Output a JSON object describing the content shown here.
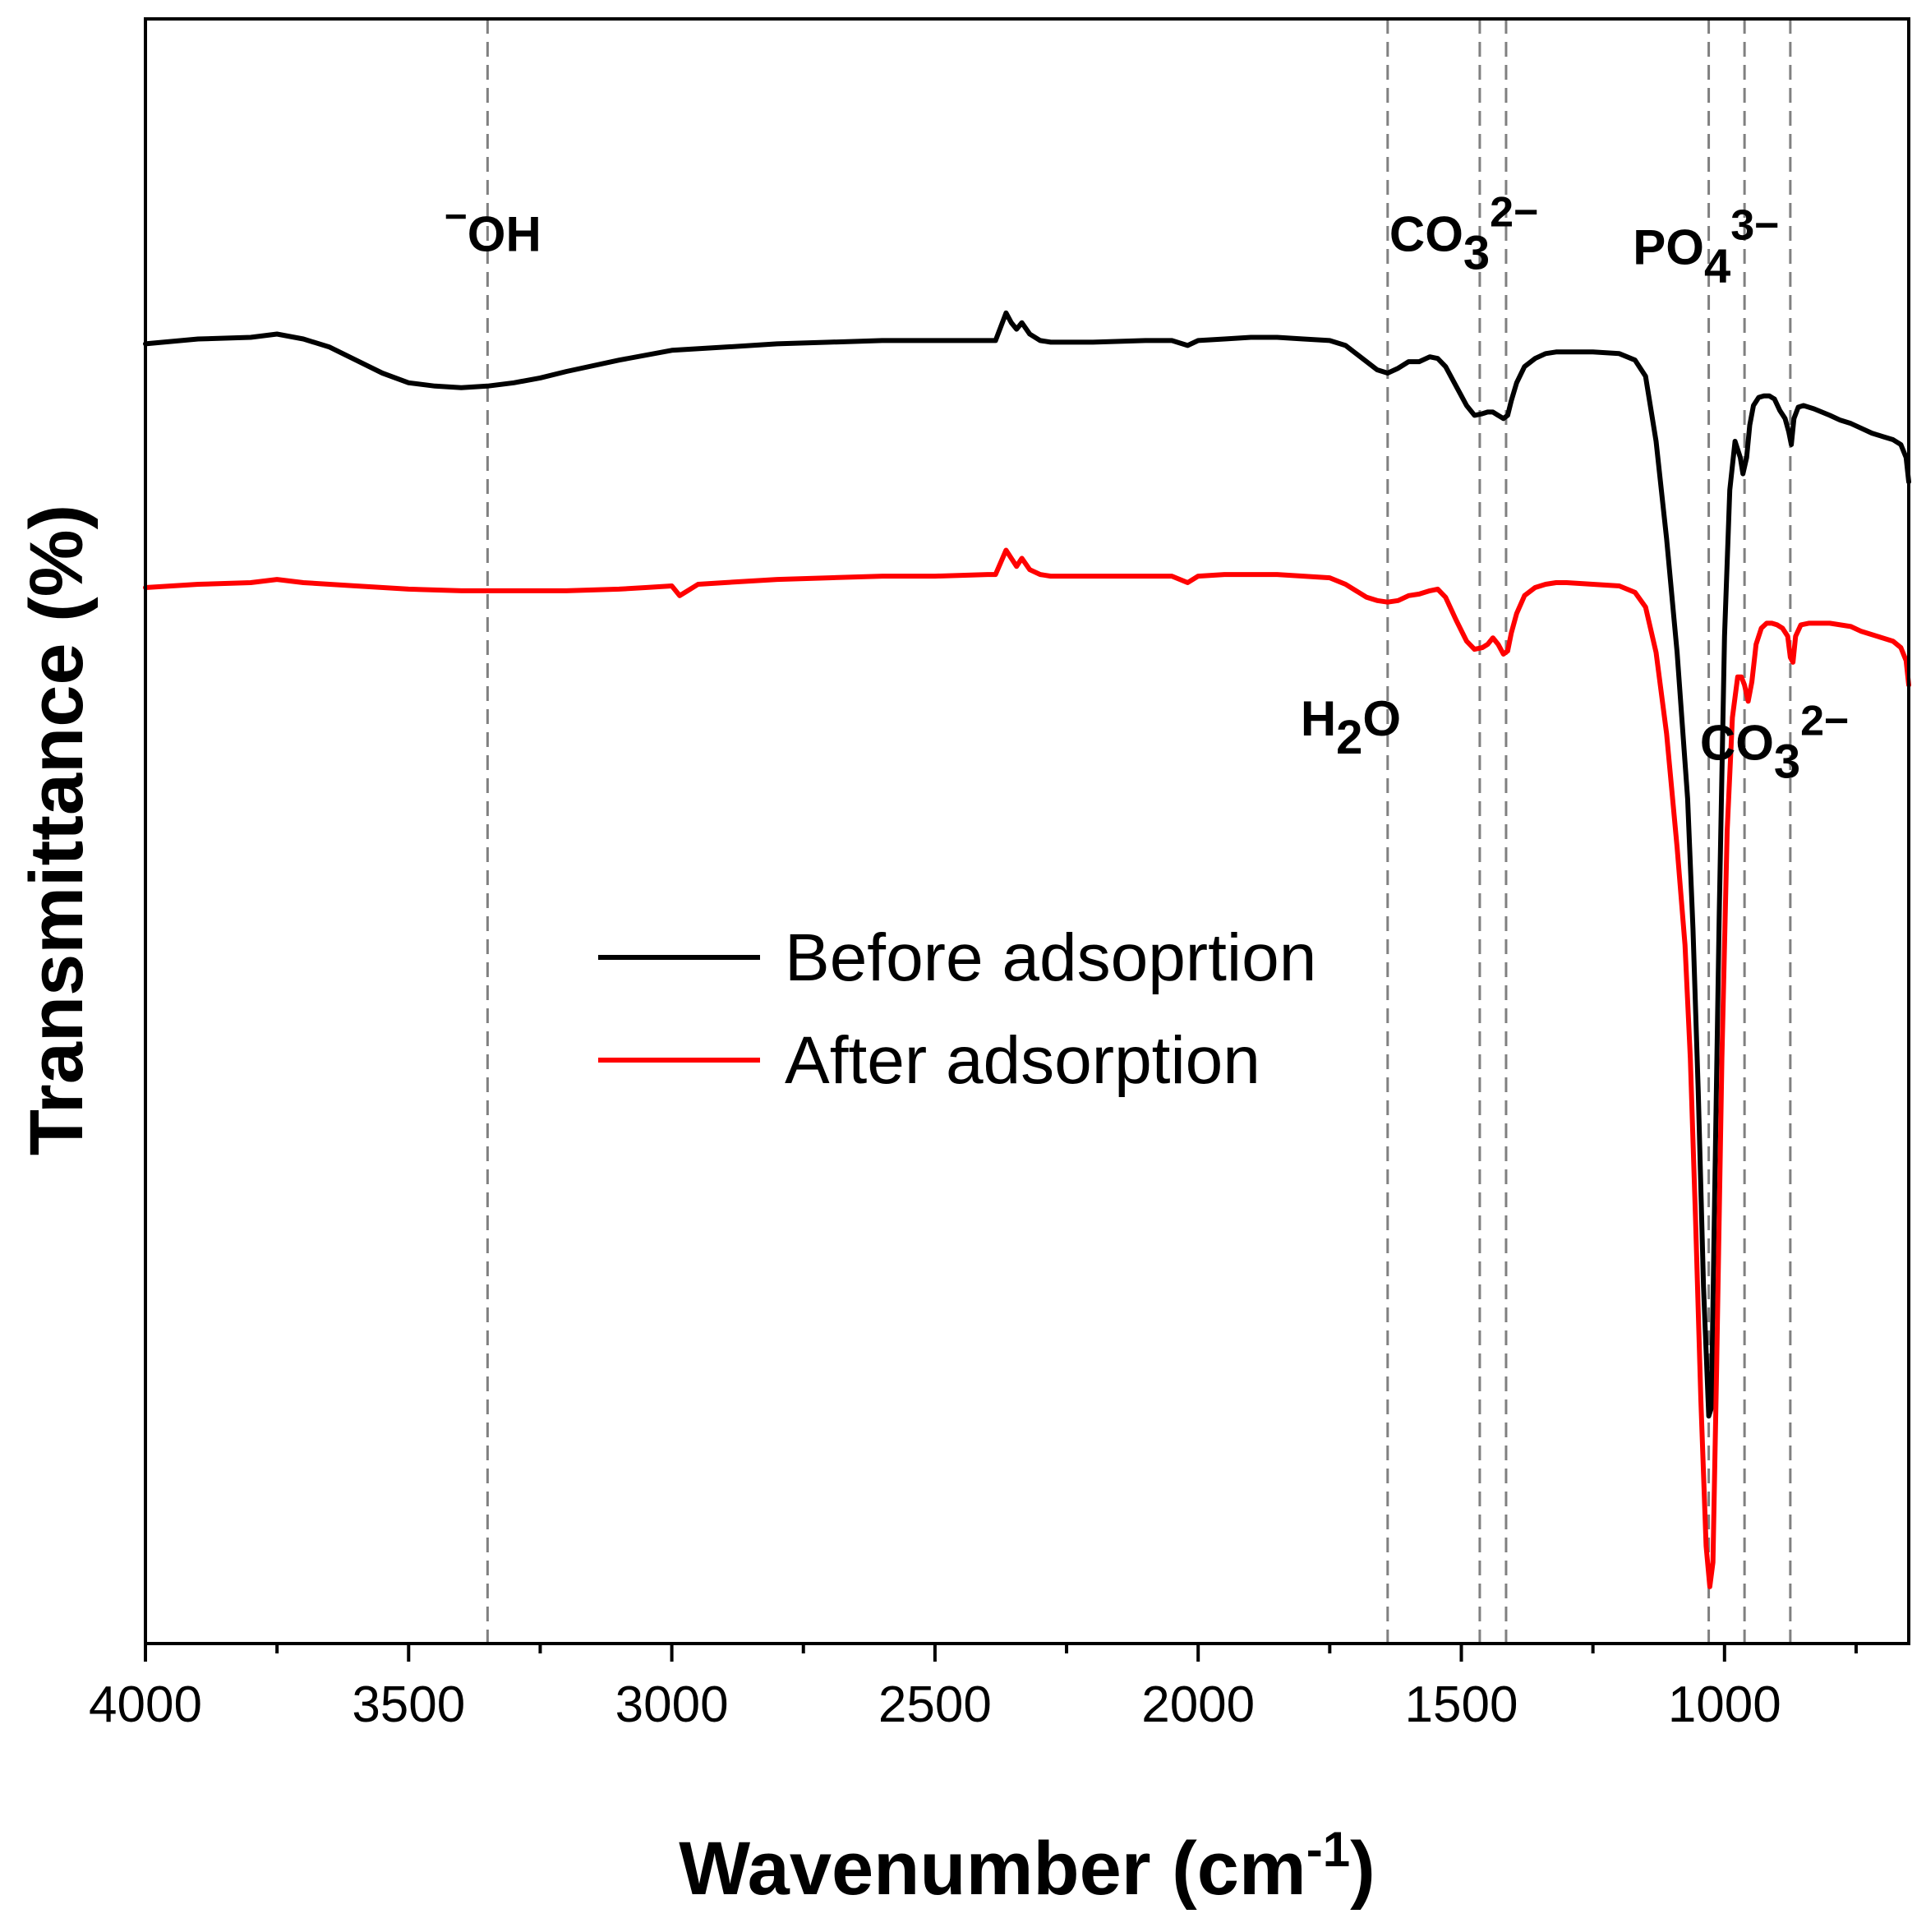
{
  "chart_data": {
    "type": "line",
    "title": "",
    "xlabel": "Wavenumber (cm",
    "xlabel_sup": "-1",
    "xlabel_close": ")",
    "ylabel": "Transmittance (%)",
    "xlim": [
      4000,
      650
    ],
    "x_reversed": true,
    "ylim": [
      0,
      100
    ],
    "y_ticks_shown": false,
    "grid": false,
    "x_ticks": [
      4000,
      3500,
      3000,
      2500,
      2000,
      1500,
      1000
    ],
    "x_tick_labels": [
      "4000",
      "3500",
      "3000",
      "2500",
      "2000",
      "1500",
      "1000"
    ],
    "x_minor_ticks": [
      3750,
      3250,
      2750,
      2250,
      1750,
      1250,
      750
    ],
    "legend": {
      "position": "center",
      "entries": [
        {
          "label": "Before adsoprtion",
          "color": "#000000"
        },
        {
          "label": "After adsorption",
          "color": "#ff0000"
        }
      ]
    },
    "reference_lines": [
      3350,
      1640,
      1465,
      1415,
      1030,
      962,
      875
    ],
    "reference_line_color": "#808080",
    "annotations": [
      {
        "id": "oh",
        "sup": "−",
        "base": "OH",
        "x": 3340,
        "y": 85.7
      },
      {
        "id": "co3-top",
        "base": "CO",
        "sub": "3",
        "sup": "2−",
        "x": 1495,
        "y": 85.7
      },
      {
        "id": "po4",
        "base": "PO",
        "sub": "4",
        "sup": "3−",
        "x": 1035,
        "y": 84.9
      },
      {
        "id": "h2o",
        "base": "H",
        "sub": "2",
        "tail": "O",
        "x": 1710,
        "y": 55.9
      },
      {
        "id": "co3-bottom",
        "base": "CO",
        "sub": "3",
        "sup": "2−",
        "x": 905,
        "y": 54.4
      }
    ],
    "series": [
      {
        "name": "Before adsoprtion",
        "color": "#000000",
        "x": [
          4000,
          3900,
          3800,
          3750,
          3700,
          3650,
          3600,
          3550,
          3500,
          3450,
          3400,
          3350,
          3300,
          3250,
          3200,
          3100,
          3000,
          2900,
          2800,
          2700,
          2600,
          2500,
          2400,
          2385,
          2365,
          2355,
          2345,
          2335,
          2320,
          2300,
          2280,
          2200,
          2100,
          2050,
          2020,
          2000,
          1950,
          1900,
          1850,
          1800,
          1750,
          1720,
          1700,
          1680,
          1660,
          1640,
          1620,
          1600,
          1580,
          1560,
          1545,
          1530,
          1510,
          1490,
          1475,
          1460,
          1450,
          1440,
          1430,
          1420,
          1412,
          1405,
          1395,
          1380,
          1360,
          1340,
          1320,
          1300,
          1250,
          1200,
          1170,
          1150,
          1130,
          1110,
          1090,
          1070,
          1060,
          1050,
          1040,
          1030,
          1025,
          1020,
          1010,
          1000,
          990,
          980,
          970,
          965,
          958,
          952,
          945,
          935,
          925,
          915,
          905,
          895,
          885,
          878,
          873,
          868,
          860,
          850,
          830,
          800,
          780,
          760,
          740,
          720,
          700,
          680,
          665,
          655,
          650
        ],
        "y": [
          80.0,
          80.3,
          80.4,
          80.6,
          80.3,
          79.8,
          79.0,
          78.2,
          77.6,
          77.4,
          77.3,
          77.4,
          77.6,
          77.9,
          78.3,
          79.0,
          79.6,
          79.8,
          80.0,
          80.1,
          80.2,
          80.2,
          80.2,
          80.2,
          81.9,
          81.3,
          80.9,
          81.3,
          80.6,
          80.2,
          80.1,
          80.1,
          80.2,
          80.2,
          79.9,
          80.2,
          80.3,
          80.4,
          80.4,
          80.3,
          80.2,
          79.9,
          79.4,
          78.9,
          78.4,
          78.2,
          78.5,
          78.9,
          78.9,
          79.2,
          79.1,
          78.6,
          77.4,
          76.2,
          75.6,
          75.7,
          75.8,
          75.8,
          75.6,
          75.4,
          75.6,
          76.5,
          77.6,
          78.6,
          79.1,
          79.4,
          79.5,
          79.5,
          79.5,
          79.4,
          79.0,
          78.0,
          74.0,
          68.0,
          61.0,
          52.0,
          44.0,
          34.0,
          22.0,
          14.0,
          14.5,
          25.0,
          45.0,
          62.0,
          71.0,
          74.0,
          73.0,
          72.0,
          73.0,
          75.0,
          76.2,
          76.7,
          76.8,
          76.8,
          76.6,
          75.9,
          75.4,
          74.6,
          73.8,
          75.4,
          76.1,
          76.2,
          76.0,
          75.6,
          75.3,
          75.1,
          74.8,
          74.5,
          74.3,
          74.1,
          73.8,
          73.0,
          71.5
        ]
      },
      {
        "name": "After adsorption",
        "color": "#ff0000",
        "x": [
          4000,
          3900,
          3800,
          3750,
          3700,
          3600,
          3500,
          3400,
          3300,
          3200,
          3100,
          3050,
          3000,
          2985,
          2970,
          2950,
          2900,
          2800,
          2700,
          2600,
          2500,
          2400,
          2385,
          2365,
          2355,
          2345,
          2335,
          2320,
          2300,
          2280,
          2200,
          2100,
          2050,
          2020,
          2000,
          1950,
          1900,
          1850,
          1800,
          1750,
          1720,
          1700,
          1680,
          1660,
          1640,
          1620,
          1600,
          1580,
          1560,
          1545,
          1530,
          1510,
          1490,
          1475,
          1460,
          1450,
          1440,
          1430,
          1420,
          1412,
          1405,
          1395,
          1380,
          1360,
          1340,
          1320,
          1300,
          1250,
          1200,
          1170,
          1150,
          1130,
          1110,
          1090,
          1075,
          1065,
          1055,
          1045,
          1035,
          1028,
          1022,
          1015,
          1005,
          995,
          985,
          975,
          968,
          962,
          955,
          948,
          940,
          930,
          920,
          910,
          900,
          890,
          880,
          875,
          870,
          865,
          855,
          840,
          820,
          800,
          780,
          760,
          740,
          720,
          700,
          680,
          665,
          655,
          650
        ],
        "y": [
          65.0,
          65.2,
          65.3,
          65.5,
          65.3,
          65.1,
          64.9,
          64.8,
          64.8,
          64.8,
          64.9,
          65.0,
          65.1,
          64.5,
          64.8,
          65.2,
          65.3,
          65.5,
          65.6,
          65.7,
          65.7,
          65.8,
          65.8,
          67.3,
          66.8,
          66.3,
          66.8,
          66.1,
          65.8,
          65.7,
          65.7,
          65.7,
          65.7,
          65.3,
          65.7,
          65.8,
          65.8,
          65.8,
          65.7,
          65.6,
          65.2,
          64.8,
          64.4,
          64.2,
          64.1,
          64.2,
          64.5,
          64.6,
          64.8,
          64.9,
          64.4,
          63.0,
          61.7,
          61.2,
          61.3,
          61.5,
          61.9,
          61.5,
          60.9,
          61.1,
          62.2,
          63.4,
          64.5,
          65.0,
          65.2,
          65.3,
          65.3,
          65.2,
          65.1,
          64.7,
          63.8,
          61.0,
          56.0,
          49.0,
          43.0,
          36.0,
          26.0,
          15.0,
          6.0,
          3.5,
          5.0,
          17.0,
          36.0,
          50.0,
          57.0,
          59.5,
          59.5,
          59.0,
          58.0,
          59.2,
          61.5,
          62.5,
          62.8,
          62.8,
          62.7,
          62.5,
          62.0,
          60.7,
          60.4,
          62.0,
          62.7,
          62.8,
          62.8,
          62.8,
          62.7,
          62.6,
          62.3,
          62.1,
          61.9,
          61.7,
          61.3,
          60.5,
          59.0
        ]
      }
    ]
  }
}
